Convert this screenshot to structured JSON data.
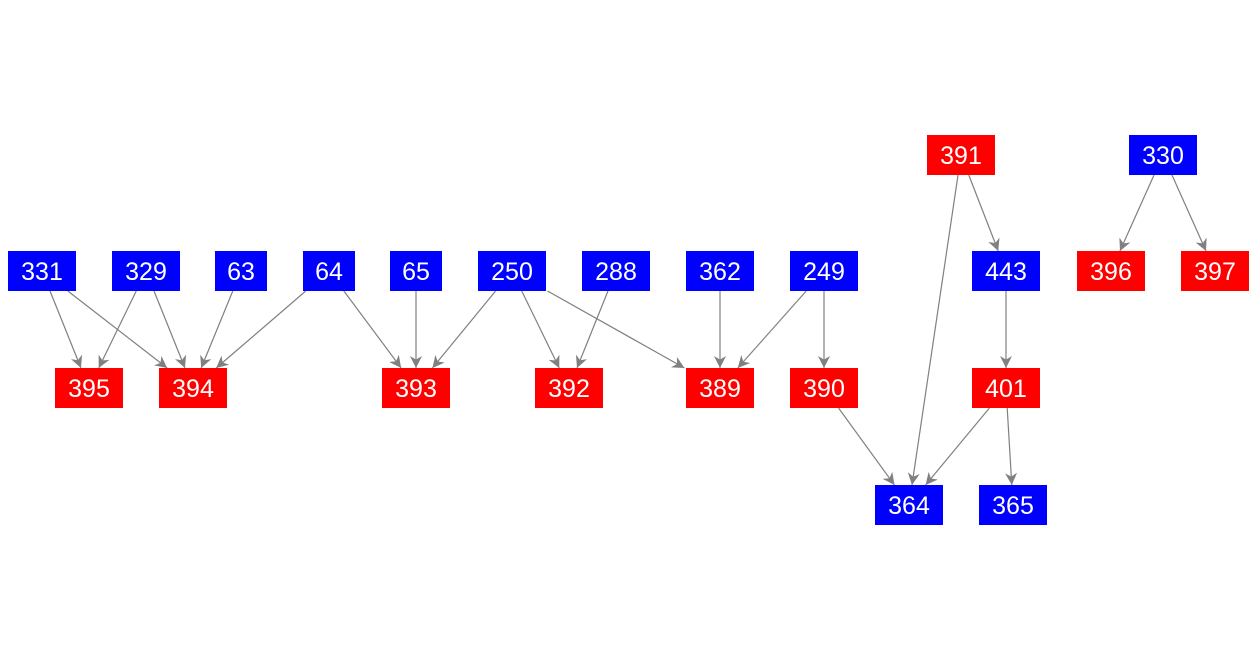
{
  "colors": {
    "blue": "#0000ff",
    "red": "#ff0000",
    "edge": "#808080",
    "text": "#ffffff"
  },
  "nodes": [
    {
      "id": "331",
      "color": "blue"
    },
    {
      "id": "329",
      "color": "blue"
    },
    {
      "id": "63",
      "color": "blue"
    },
    {
      "id": "64",
      "color": "blue"
    },
    {
      "id": "65",
      "color": "blue"
    },
    {
      "id": "250",
      "color": "blue"
    },
    {
      "id": "288",
      "color": "blue"
    },
    {
      "id": "362",
      "color": "blue"
    },
    {
      "id": "249",
      "color": "blue"
    },
    {
      "id": "391",
      "color": "red"
    },
    {
      "id": "443",
      "color": "blue"
    },
    {
      "id": "330",
      "color": "blue"
    },
    {
      "id": "396",
      "color": "red"
    },
    {
      "id": "397",
      "color": "red"
    },
    {
      "id": "395",
      "color": "red"
    },
    {
      "id": "394",
      "color": "red"
    },
    {
      "id": "393",
      "color": "red"
    },
    {
      "id": "392",
      "color": "red"
    },
    {
      "id": "389",
      "color": "red"
    },
    {
      "id": "390",
      "color": "red"
    },
    {
      "id": "401",
      "color": "red"
    },
    {
      "id": "364",
      "color": "blue"
    },
    {
      "id": "365",
      "color": "blue"
    }
  ],
  "edges": [
    [
      "331",
      "395"
    ],
    [
      "331",
      "394"
    ],
    [
      "329",
      "395"
    ],
    [
      "329",
      "394"
    ],
    [
      "63",
      "394"
    ],
    [
      "64",
      "394"
    ],
    [
      "64",
      "393"
    ],
    [
      "65",
      "393"
    ],
    [
      "250",
      "393"
    ],
    [
      "250",
      "392"
    ],
    [
      "250",
      "389"
    ],
    [
      "288",
      "392"
    ],
    [
      "362",
      "389"
    ],
    [
      "249",
      "389"
    ],
    [
      "249",
      "390"
    ],
    [
      "390",
      "364"
    ],
    [
      "391",
      "364"
    ],
    [
      "391",
      "443"
    ],
    [
      "443",
      "401"
    ],
    [
      "401",
      "364"
    ],
    [
      "401",
      "365"
    ],
    [
      "330",
      "396"
    ],
    [
      "330",
      "397"
    ]
  ]
}
